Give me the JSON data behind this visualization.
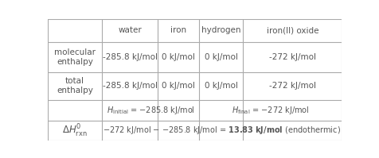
{
  "col_headers": [
    "",
    "water",
    "iron",
    "hydrogen",
    "iron(II) oxide"
  ],
  "row1_label": "molecular\nenthalpy",
  "row2_label": "total\nenthalpy",
  "row1_data": [
    "-285.8 kJ/mol",
    "0 kJ/mol",
    "0 kJ/mol",
    "-272 kJ/mol"
  ],
  "row2_data": [
    "-285.8 kJ/mol",
    "0 kJ/mol",
    "0 kJ/mol",
    "-272 kJ/mol"
  ],
  "bg_color": "#ffffff",
  "grid_color": "#aaaaaa",
  "text_color": "#555555"
}
